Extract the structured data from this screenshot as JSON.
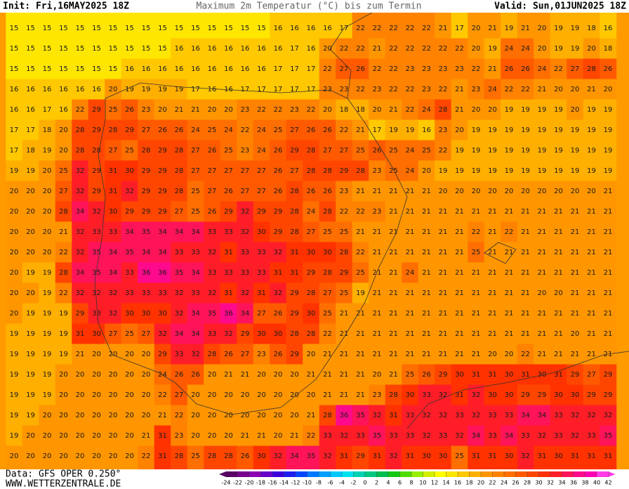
{
  "header": {
    "init": "Init: Fri,16MAY2025 18Z",
    "title": "Maximum 2m Temperatur (°C) bis zum Termin",
    "valid": "Valid: Sun,01JUN2025 18Z"
  },
  "grid": {
    "rows": [
      [
        15,
        15,
        15,
        15,
        15,
        15,
        15,
        15,
        15,
        15,
        15,
        15,
        15,
        15,
        15,
        15,
        16,
        16,
        16,
        16,
        17,
        22,
        22,
        22,
        22,
        22,
        21,
        17,
        20,
        21,
        19,
        21,
        20,
        19,
        19,
        18,
        16
      ],
      [
        15,
        15,
        15,
        15,
        15,
        15,
        15,
        15,
        15,
        15,
        16,
        16,
        16,
        16,
        16,
        16,
        16,
        17,
        16,
        20,
        22,
        22,
        21,
        22,
        22,
        22,
        22,
        22,
        20,
        19,
        24,
        24,
        20,
        19,
        19,
        20,
        18
      ],
      [
        15,
        15,
        15,
        15,
        15,
        15,
        15,
        16,
        16,
        16,
        16,
        16,
        16,
        16,
        16,
        16,
        17,
        17,
        17,
        22,
        27,
        26,
        22,
        22,
        23,
        23,
        23,
        23,
        22,
        21,
        26,
        26,
        24,
        22,
        27,
        28,
        26
      ],
      [
        16,
        16,
        16,
        16,
        16,
        16,
        20,
        19,
        19,
        19,
        19,
        17,
        16,
        16,
        17,
        17,
        17,
        17,
        17,
        23,
        23,
        22,
        23,
        22,
        22,
        23,
        22,
        21,
        23,
        24,
        22,
        22,
        21,
        20,
        20,
        21,
        20
      ],
      [
        16,
        16,
        17,
        16,
        22,
        29,
        25,
        26,
        23,
        20,
        21,
        21,
        20,
        20,
        23,
        22,
        22,
        23,
        22,
        20,
        18,
        18,
        20,
        21,
        22,
        24,
        28,
        21,
        20,
        20,
        19,
        19,
        19,
        19,
        20,
        19,
        19
      ],
      [
        17,
        17,
        18,
        20,
        28,
        29,
        28,
        29,
        27,
        26,
        26,
        24,
        25,
        24,
        22,
        24,
        25,
        27,
        26,
        26,
        22,
        21,
        17,
        19,
        19,
        16,
        23,
        20,
        19,
        19,
        19,
        19,
        19,
        19,
        19,
        19,
        19
      ],
      [
        17,
        18,
        19,
        20,
        28,
        28,
        27,
        25,
        28,
        29,
        28,
        27,
        26,
        25,
        23,
        24,
        26,
        29,
        28,
        27,
        27,
        25,
        26,
        25,
        24,
        25,
        22,
        19,
        19,
        19,
        19,
        19,
        19,
        19,
        19,
        19,
        19
      ],
      [
        19,
        19,
        20,
        25,
        32,
        29,
        31,
        30,
        29,
        29,
        28,
        27,
        27,
        27,
        27,
        27,
        26,
        27,
        28,
        28,
        29,
        28,
        23,
        25,
        24,
        20,
        19,
        19,
        19,
        19,
        19,
        19,
        19,
        19,
        19,
        19,
        19
      ],
      [
        20,
        20,
        20,
        27,
        32,
        29,
        31,
        32,
        29,
        29,
        28,
        25,
        27,
        26,
        27,
        27,
        26,
        28,
        26,
        26,
        23,
        21,
        21,
        21,
        21,
        21,
        20,
        20,
        20,
        20,
        20,
        20,
        20,
        20,
        20,
        20,
        21
      ],
      [
        20,
        20,
        20,
        28,
        34,
        32,
        30,
        29,
        29,
        29,
        27,
        25,
        26,
        29,
        32,
        29,
        29,
        28,
        24,
        28,
        22,
        22,
        23,
        21,
        21,
        21,
        21,
        21,
        21,
        21,
        21,
        21,
        21,
        21,
        21,
        21,
        21
      ],
      [
        20,
        20,
        20,
        21,
        32,
        33,
        33,
        34,
        35,
        34,
        34,
        34,
        33,
        33,
        32,
        30,
        29,
        28,
        27,
        25,
        25,
        21,
        21,
        21,
        21,
        21,
        21,
        21,
        22,
        21,
        22,
        21,
        21,
        21,
        21,
        21,
        21
      ],
      [
        20,
        20,
        20,
        22,
        32,
        35,
        34,
        35,
        34,
        34,
        33,
        33,
        32,
        31,
        33,
        33,
        32,
        31,
        30,
        30,
        28,
        22,
        21,
        21,
        21,
        21,
        21,
        21,
        25,
        21,
        21,
        21,
        21,
        21,
        21,
        21,
        21
      ],
      [
        20,
        19,
        19,
        28,
        34,
        35,
        34,
        33,
        36,
        36,
        35,
        34,
        33,
        33,
        33,
        33,
        31,
        31,
        29,
        28,
        29,
        25,
        21,
        21,
        24,
        21,
        21,
        21,
        21,
        21,
        21,
        21,
        21,
        21,
        21,
        21,
        21
      ],
      [
        20,
        20,
        19,
        22,
        32,
        32,
        32,
        33,
        33,
        33,
        32,
        33,
        32,
        31,
        32,
        31,
        32,
        29,
        28,
        27,
        25,
        19,
        21,
        21,
        21,
        21,
        21,
        21,
        21,
        21,
        21,
        21,
        20,
        20,
        21,
        21,
        21
      ],
      [
        20,
        19,
        19,
        19,
        29,
        33,
        32,
        30,
        30,
        30,
        32,
        34,
        35,
        36,
        34,
        27,
        26,
        29,
        30,
        25,
        21,
        21,
        21,
        21,
        21,
        21,
        21,
        21,
        21,
        21,
        21,
        21,
        21,
        21,
        21,
        21,
        21
      ],
      [
        19,
        19,
        19,
        19,
        31,
        30,
        27,
        25,
        27,
        32,
        34,
        34,
        33,
        32,
        29,
        30,
        30,
        28,
        28,
        22,
        21,
        21,
        21,
        21,
        21,
        21,
        21,
        21,
        21,
        21,
        21,
        21,
        21,
        21,
        20,
        21,
        21
      ],
      [
        19,
        19,
        19,
        19,
        21,
        20,
        20,
        20,
        20,
        29,
        33,
        32,
        28,
        26,
        27,
        23,
        26,
        29,
        20,
        21,
        21,
        21,
        21,
        21,
        21,
        21,
        21,
        21,
        21,
        20,
        20,
        22,
        21,
        21,
        21,
        21,
        21
      ],
      [
        19,
        19,
        19,
        20,
        20,
        20,
        20,
        20,
        20,
        24,
        26,
        26,
        20,
        21,
        21,
        20,
        20,
        20,
        21,
        21,
        21,
        21,
        20,
        21,
        25,
        26,
        29,
        30,
        31,
        31,
        30,
        31,
        30,
        31,
        29,
        27,
        29
      ],
      [
        19,
        19,
        19,
        20,
        20,
        20,
        20,
        20,
        20,
        22,
        27,
        20,
        20,
        20,
        20,
        20,
        20,
        20,
        20,
        21,
        21,
        21,
        23,
        28,
        30,
        33,
        32,
        31,
        32,
        30,
        30,
        29,
        29,
        30,
        30,
        29,
        29
      ],
      [
        19,
        19,
        20,
        20,
        20,
        20,
        20,
        20,
        20,
        21,
        22,
        20,
        20,
        20,
        20,
        20,
        20,
        20,
        21,
        28,
        36,
        35,
        32,
        31,
        33,
        32,
        32,
        33,
        32,
        33,
        33,
        34,
        34,
        33,
        32,
        32,
        32
      ],
      [
        19,
        20,
        20,
        20,
        20,
        20,
        20,
        20,
        21,
        31,
        23,
        20,
        20,
        20,
        21,
        21,
        20,
        21,
        22,
        33,
        32,
        33,
        35,
        33,
        33,
        32,
        33,
        32,
        34,
        33,
        34,
        33,
        32,
        33,
        32,
        33,
        35
      ],
      [
        20,
        20,
        20,
        20,
        20,
        20,
        20,
        20,
        22,
        31,
        28,
        25,
        28,
        28,
        26,
        30,
        32,
        34,
        35,
        32,
        31,
        29,
        31,
        32,
        31,
        30,
        30,
        25,
        31,
        31,
        30,
        32,
        31,
        30,
        31,
        31,
        31
      ]
    ]
  },
  "footer": {
    "data": "Data: GFS OPER 0.250°",
    "site": "WWW.WETTERZENTRALE.DE"
  },
  "colorbar": {
    "ticks": [
      -24,
      -22,
      -20,
      -18,
      -16,
      -14,
      -12,
      -10,
      -8,
      -6,
      -4,
      -2,
      0,
      2,
      4,
      6,
      8,
      10,
      12,
      14,
      16,
      18,
      20,
      22,
      24,
      26,
      28,
      30,
      32,
      34,
      36,
      38,
      40,
      42
    ],
    "colors": [
      "#5a0064",
      "#78008c",
      "#8c00b4",
      "#6400c8",
      "#3c00dc",
      "#1e1ef0",
      "#0046ff",
      "#0078ff",
      "#00a0ff",
      "#00c8ff",
      "#00e1f0",
      "#00d2b4",
      "#00c882",
      "#00be50",
      "#14c814",
      "#50dc00",
      "#96f000",
      "#d2f000",
      "#ffff00",
      "#ffe600",
      "#ffc800",
      "#ffaf00",
      "#ff9600",
      "#ff8200",
      "#ff6e00",
      "#ff5a00",
      "#ff4600",
      "#ff3200",
      "#ff1e28",
      "#ff145a",
      "#ff0a8c",
      "#ff00b4",
      "#ff3ce6"
    ]
  }
}
